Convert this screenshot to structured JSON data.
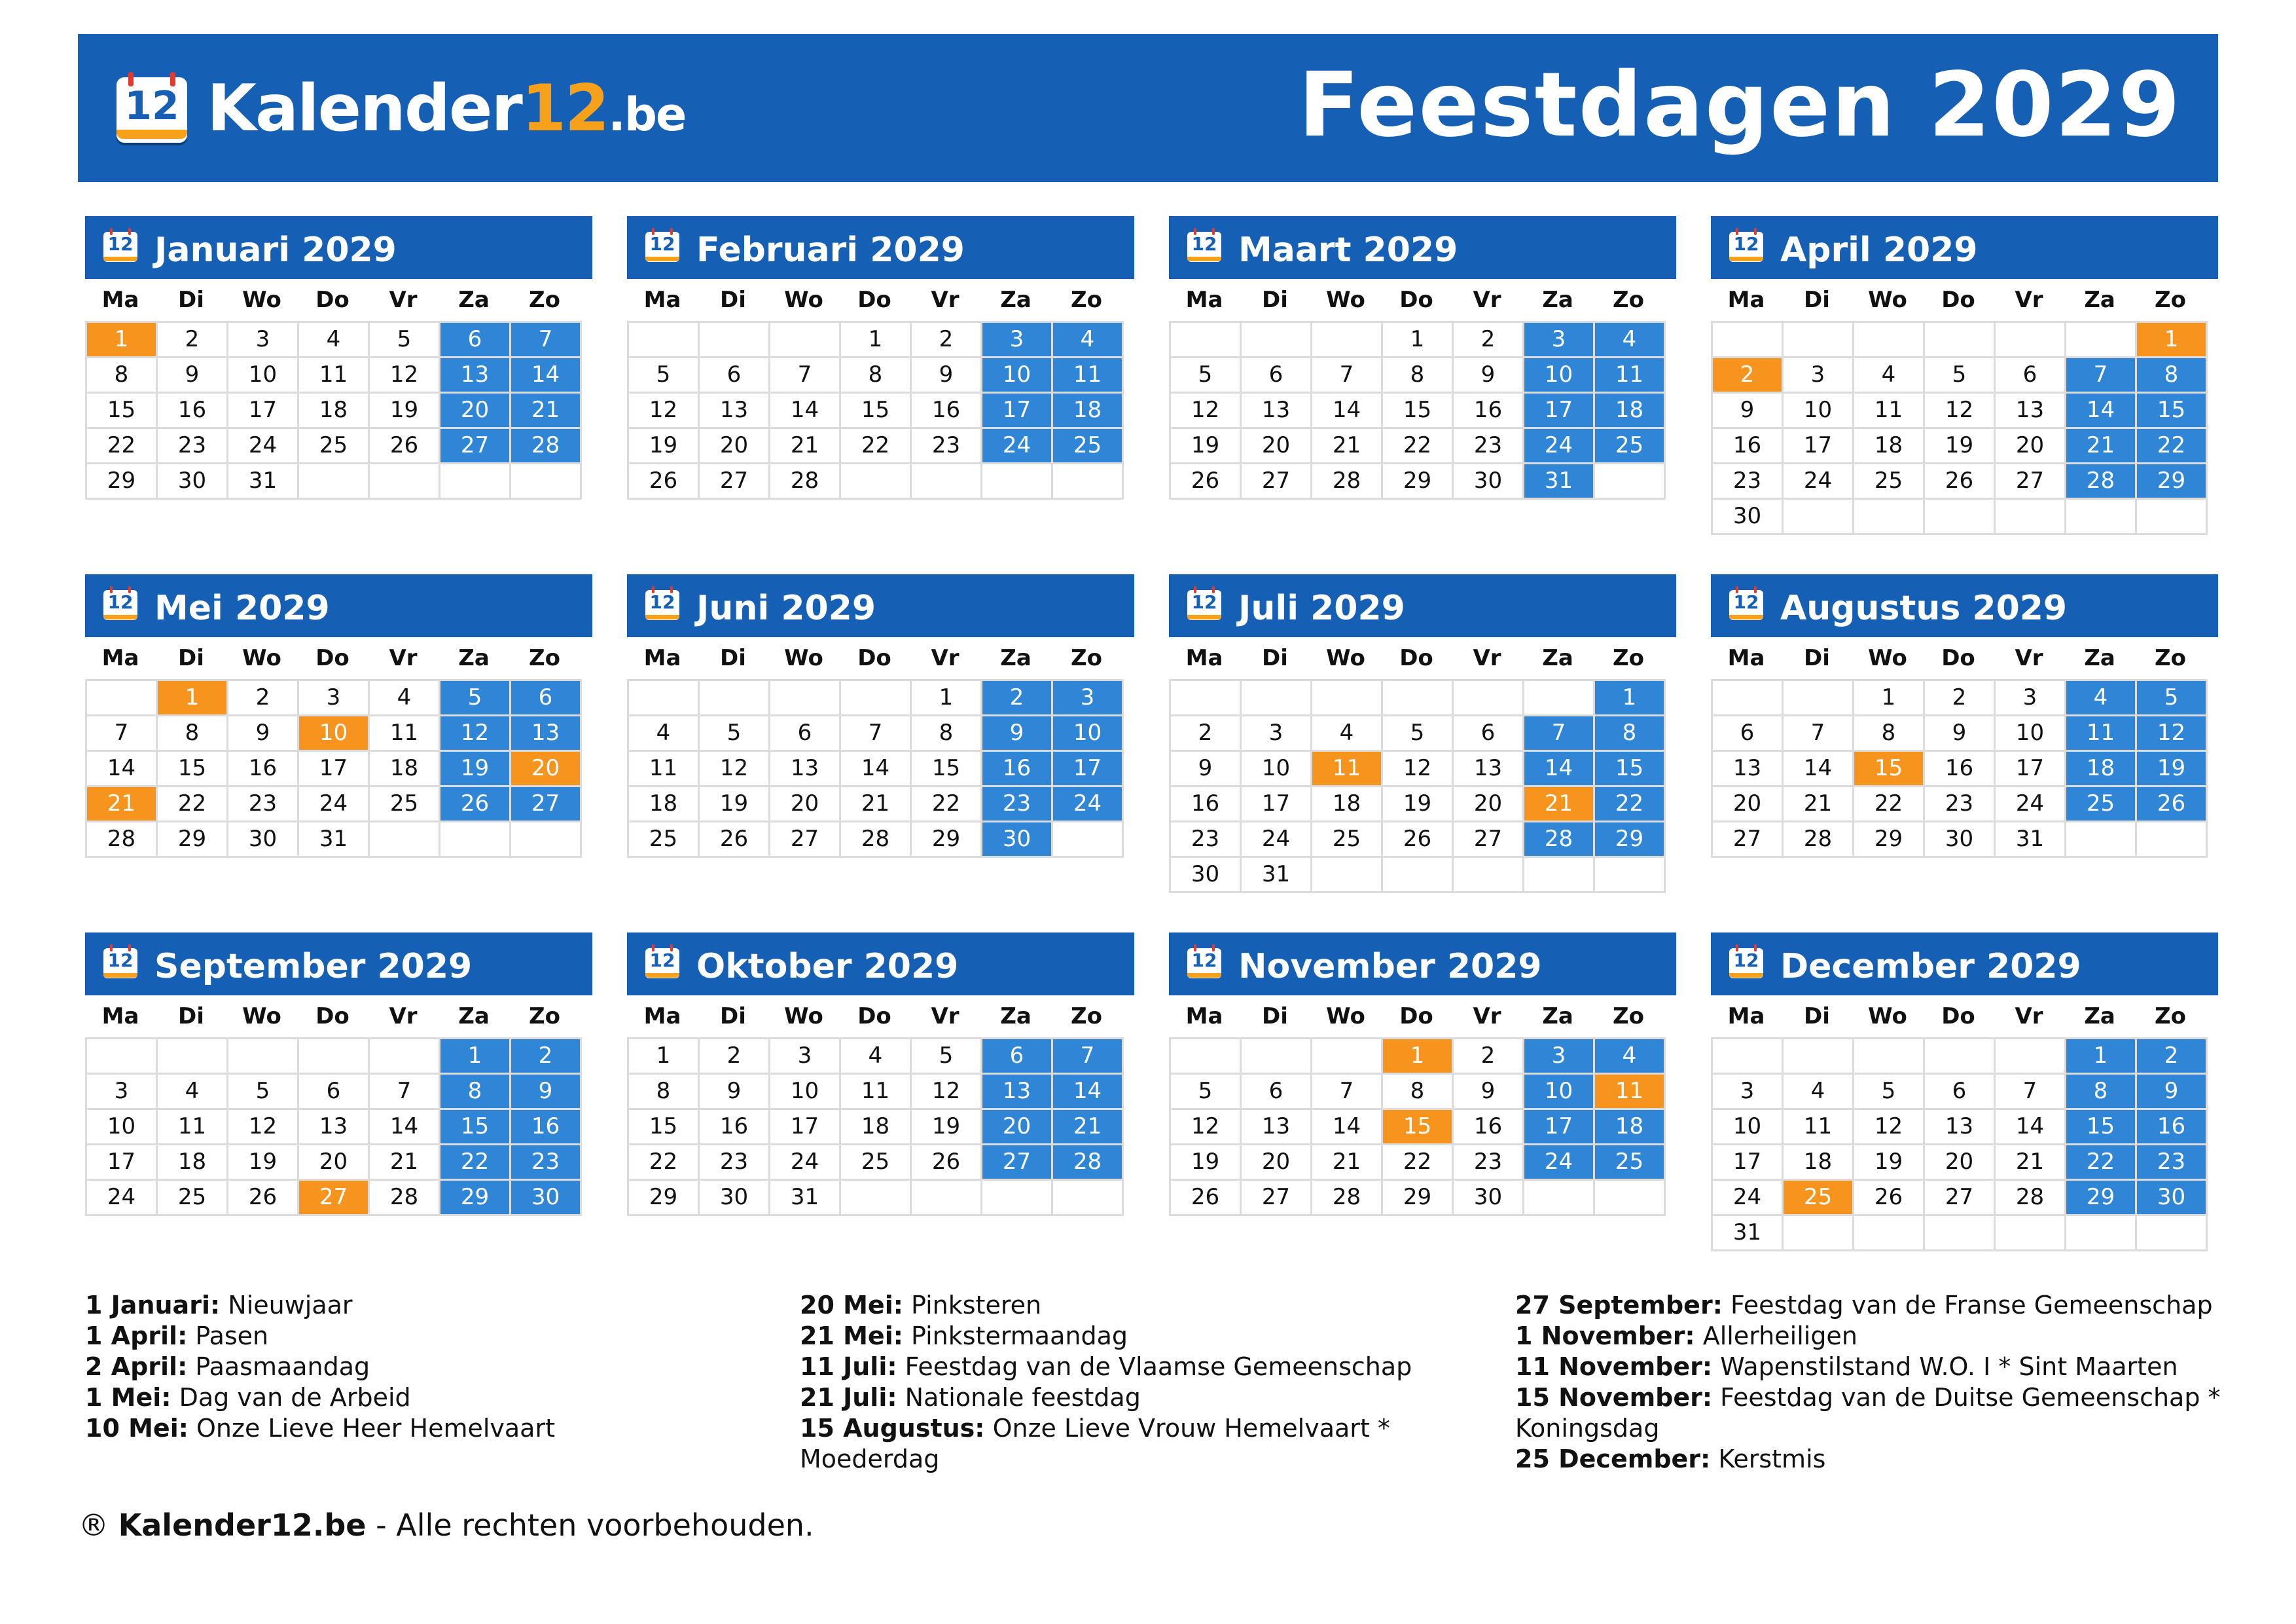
{
  "header": {
    "logo_number": "12",
    "logo_text_a": "Kalender",
    "logo_text_b": "12",
    "logo_text_c": ".be",
    "title": "Feestdagen 2029"
  },
  "colors": {
    "brand_blue": "#1560b5",
    "weekend_blue": "#2f86d6",
    "holiday_orange": "#f7941d"
  },
  "weekday_headers": [
    "Ma",
    "Di",
    "Wo",
    "Do",
    "Vr",
    "Za",
    "Zo"
  ],
  "month_icon_number": "12",
  "months": [
    {
      "title": "Januari 2029",
      "start": 0,
      "days": 31,
      "holidays": [
        1
      ]
    },
    {
      "title": "Februari 2029",
      "start": 3,
      "days": 28,
      "holidays": []
    },
    {
      "title": "Maart 2029",
      "start": 3,
      "days": 31,
      "holidays": []
    },
    {
      "title": "April 2029",
      "start": 6,
      "days": 30,
      "holidays": [
        1,
        2
      ]
    },
    {
      "title": "Mei 2029",
      "start": 1,
      "days": 31,
      "holidays": [
        1,
        10,
        20,
        21
      ]
    },
    {
      "title": "Juni 2029",
      "start": 4,
      "days": 30,
      "holidays": []
    },
    {
      "title": "Juli 2029",
      "start": 6,
      "days": 31,
      "holidays": [
        11,
        21
      ]
    },
    {
      "title": "Augustus 2029",
      "start": 2,
      "days": 31,
      "holidays": [
        15
      ]
    },
    {
      "title": "September 2029",
      "start": 5,
      "days": 30,
      "holidays": [
        27
      ]
    },
    {
      "title": "Oktober 2029",
      "start": 0,
      "days": 31,
      "holidays": []
    },
    {
      "title": "November 2029",
      "start": 3,
      "days": 30,
      "holidays": [
        1,
        11,
        15
      ]
    },
    {
      "title": "December 2029",
      "start": 5,
      "days": 31,
      "holidays": [
        25
      ]
    }
  ],
  "holiday_list": [
    [
      {
        "date": "1 Januari:",
        "name": "Nieuwjaar"
      },
      {
        "date": "1 April:",
        "name": "Pasen"
      },
      {
        "date": "2 April:",
        "name": "Paasmaandag"
      },
      {
        "date": "1 Mei:",
        "name": "Dag van de Arbeid"
      },
      {
        "date": "10 Mei:",
        "name": "Onze Lieve Heer Hemelvaart"
      }
    ],
    [
      {
        "date": "20 Mei:",
        "name": "Pinksteren"
      },
      {
        "date": "21 Mei:",
        "name": "Pinkstermaandag"
      },
      {
        "date": "11 Juli:",
        "name": "Feestdag van de Vlaamse Gemeenschap"
      },
      {
        "date": "21 Juli:",
        "name": "Nationale feestdag"
      },
      {
        "date": "15 Augustus:",
        "name": "Onze Lieve Vrouw Hemelvaart * Moederdag"
      }
    ],
    [
      {
        "date": "27 September:",
        "name": "Feestdag van de Franse Gemeenschap"
      },
      {
        "date": "1 November:",
        "name": "Allerheiligen"
      },
      {
        "date": "11 November:",
        "name": "Wapenstilstand W.O. I * Sint Maarten"
      },
      {
        "date": "15 November:",
        "name": "Feestdag van de Duitse Gemeenschap * Koningsdag"
      },
      {
        "date": "25 December:",
        "name": "Kerstmis"
      }
    ]
  ],
  "footer": {
    "symbol": "®",
    "brand": "Kalender12.be",
    "text": "- Alle rechten voorbehouden."
  }
}
